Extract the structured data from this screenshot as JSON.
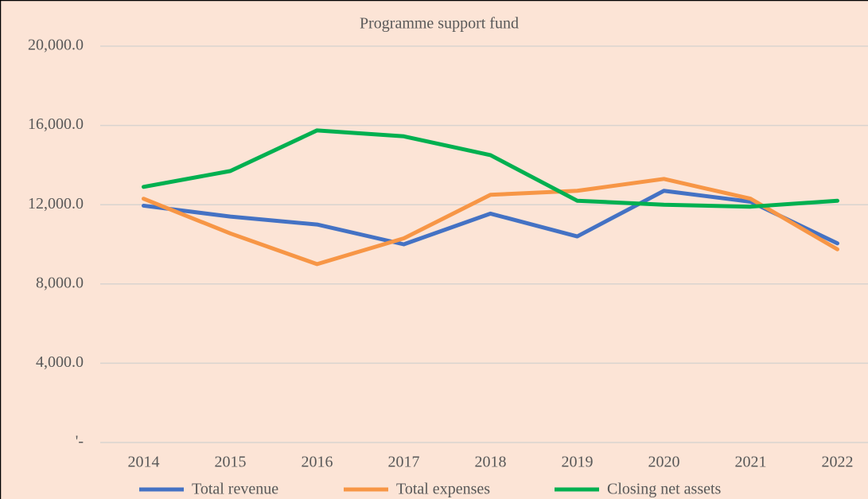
{
  "chart_data": {
    "type": "line",
    "title": "Programme support fund",
    "categories": [
      "2014",
      "2015",
      "2016",
      "2017",
      "2018",
      "2019",
      "2020",
      "2021",
      "2022"
    ],
    "series": [
      {
        "name": "Total revenue",
        "color": "#4472c4",
        "values": [
          11950,
          11400,
          11000,
          10000,
          11550,
          10400,
          12700,
          12150,
          10050
        ]
      },
      {
        "name": "Total expenses",
        "color": "#f79646",
        "values": [
          12300,
          10550,
          9000,
          10300,
          12500,
          12700,
          13300,
          12300,
          9750
        ]
      },
      {
        "name": "Closing net assets",
        "color": "#00b050",
        "values": [
          12900,
          13700,
          15750,
          15450,
          14500,
          12200,
          12000,
          11900,
          12200
        ]
      }
    ],
    "ylim": [
      0,
      20000
    ],
    "yticks": [
      {
        "value": 0,
        "label": "'-"
      },
      {
        "value": 4000,
        "label": "4,000.0"
      },
      {
        "value": 8000,
        "label": "8,000.0"
      },
      {
        "value": 12000,
        "label": "12,000.0"
      },
      {
        "value": 16000,
        "label": "16,000.0"
      },
      {
        "value": 20000,
        "label": "20,000.0"
      }
    ],
    "grid": true,
    "legend": "bottom"
  }
}
